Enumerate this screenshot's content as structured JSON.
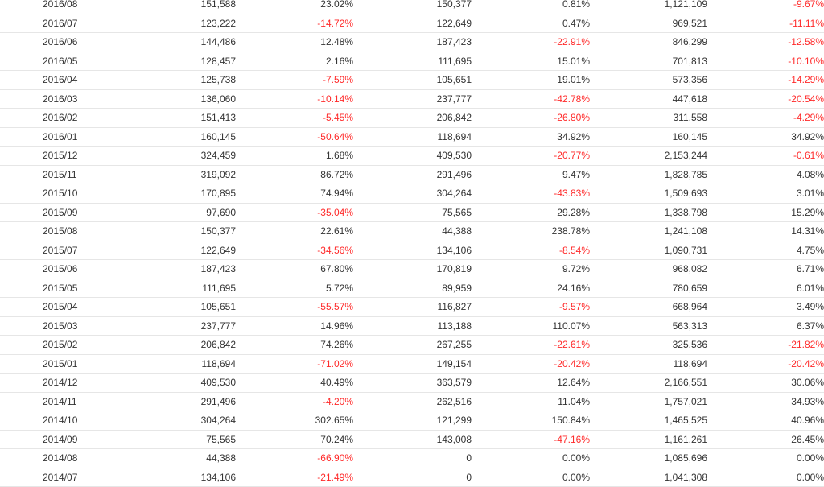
{
  "table": {
    "colors": {
      "negative": "#ff2a2a",
      "positive": "#333333",
      "border": "#e6e6e6"
    },
    "rows": [
      [
        "2016/08",
        "151,588",
        "23.02%",
        "150,377",
        "0.81%",
        "1,121,109",
        "-9.67%"
      ],
      [
        "2016/07",
        "123,222",
        "-14.72%",
        "122,649",
        "0.47%",
        "969,521",
        "-11.11%"
      ],
      [
        "2016/06",
        "144,486",
        "12.48%",
        "187,423",
        "-22.91%",
        "846,299",
        "-12.58%"
      ],
      [
        "2016/05",
        "128,457",
        "2.16%",
        "111,695",
        "15.01%",
        "701,813",
        "-10.10%"
      ],
      [
        "2016/04",
        "125,738",
        "-7.59%",
        "105,651",
        "19.01%",
        "573,356",
        "-14.29%"
      ],
      [
        "2016/03",
        "136,060",
        "-10.14%",
        "237,777",
        "-42.78%",
        "447,618",
        "-20.54%"
      ],
      [
        "2016/02",
        "151,413",
        "-5.45%",
        "206,842",
        "-26.80%",
        "311,558",
        "-4.29%"
      ],
      [
        "2016/01",
        "160,145",
        "-50.64%",
        "118,694",
        "34.92%",
        "160,145",
        "34.92%"
      ],
      [
        "2015/12",
        "324,459",
        "1.68%",
        "409,530",
        "-20.77%",
        "2,153,244",
        "-0.61%"
      ],
      [
        "2015/11",
        "319,092",
        "86.72%",
        "291,496",
        "9.47%",
        "1,828,785",
        "4.08%"
      ],
      [
        "2015/10",
        "170,895",
        "74.94%",
        "304,264",
        "-43.83%",
        "1,509,693",
        "3.01%"
      ],
      [
        "2015/09",
        "97,690",
        "-35.04%",
        "75,565",
        "29.28%",
        "1,338,798",
        "15.29%"
      ],
      [
        "2015/08",
        "150,377",
        "22.61%",
        "44,388",
        "238.78%",
        "1,241,108",
        "14.31%"
      ],
      [
        "2015/07",
        "122,649",
        "-34.56%",
        "134,106",
        "-8.54%",
        "1,090,731",
        "4.75%"
      ],
      [
        "2015/06",
        "187,423",
        "67.80%",
        "170,819",
        "9.72%",
        "968,082",
        "6.71%"
      ],
      [
        "2015/05",
        "111,695",
        "5.72%",
        "89,959",
        "24.16%",
        "780,659",
        "6.01%"
      ],
      [
        "2015/04",
        "105,651",
        "-55.57%",
        "116,827",
        "-9.57%",
        "668,964",
        "3.49%"
      ],
      [
        "2015/03",
        "237,777",
        "14.96%",
        "113,188",
        "110.07%",
        "563,313",
        "6.37%"
      ],
      [
        "2015/02",
        "206,842",
        "74.26%",
        "267,255",
        "-22.61%",
        "325,536",
        "-21.82%"
      ],
      [
        "2015/01",
        "118,694",
        "-71.02%",
        "149,154",
        "-20.42%",
        "118,694",
        "-20.42%"
      ],
      [
        "2014/12",
        "409,530",
        "40.49%",
        "363,579",
        "12.64%",
        "2,166,551",
        "30.06%"
      ],
      [
        "2014/11",
        "291,496",
        "-4.20%",
        "262,516",
        "11.04%",
        "1,757,021",
        "34.93%"
      ],
      [
        "2014/10",
        "304,264",
        "302.65%",
        "121,299",
        "150.84%",
        "1,465,525",
        "40.96%"
      ],
      [
        "2014/09",
        "75,565",
        "70.24%",
        "143,008",
        "-47.16%",
        "1,161,261",
        "26.45%"
      ],
      [
        "2014/08",
        "44,388",
        "-66.90%",
        "0",
        "0.00%",
        "1,085,696",
        "0.00%"
      ],
      [
        "2014/07",
        "134,106",
        "-21.49%",
        "0",
        "0.00%",
        "1,041,308",
        "0.00%"
      ]
    ]
  }
}
